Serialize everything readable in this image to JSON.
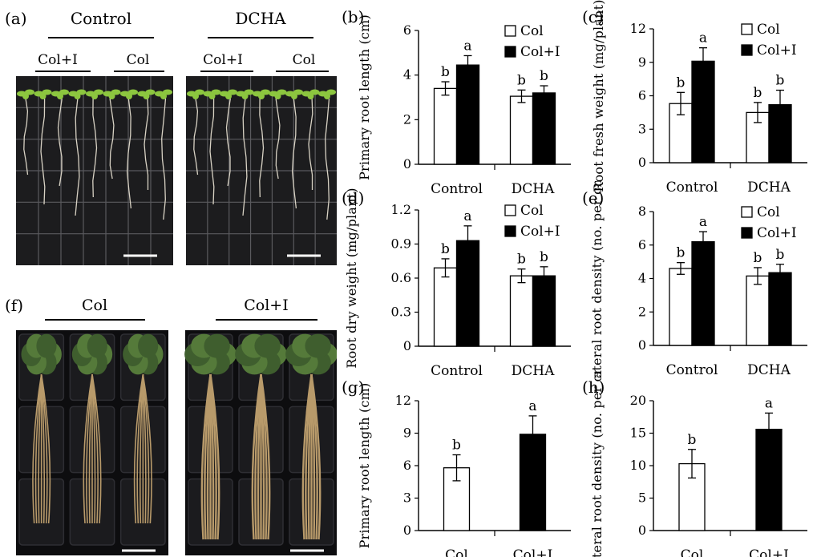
{
  "figure": {
    "panel_a": {
      "label": "(a)",
      "groups": [
        {
          "title": "Control",
          "subgroups": [
            "Col+I",
            "Col"
          ]
        },
        {
          "title": "DCHA",
          "subgroups": [
            "Col+I",
            "Col"
          ]
        }
      ]
    },
    "panel_f": {
      "label": "(f)",
      "groups": [
        {
          "title": "Col"
        },
        {
          "title": "Col+I"
        }
      ]
    }
  },
  "colors": {
    "col_fill": "#ffffff",
    "coli_fill": "#000000",
    "plate_bg": "#1c1c1e",
    "grid_line": "#5a5a5e",
    "leaf": "#8cc63f",
    "root": "#d8d2c4",
    "adult_leaf": "#3f5e2e",
    "adult_root": "#b89a6a",
    "tray": "#0d0d0f"
  },
  "chart_data": [
    {
      "id": "b",
      "label": "(b)",
      "type": "bar",
      "ylabel": "Primary root length (cm)",
      "categories": [
        "Control",
        "DCHA"
      ],
      "ylim": [
        0,
        6
      ],
      "yticks": [
        0,
        2,
        4,
        6
      ],
      "legend": [
        "Col",
        "Col+I"
      ],
      "legend_position": "top-right",
      "series": [
        {
          "name": "Col",
          "values": [
            3.4,
            3.05
          ],
          "errors": [
            0.3,
            0.28
          ],
          "letters": [
            "b",
            "b"
          ]
        },
        {
          "name": "Col+I",
          "values": [
            4.45,
            3.2
          ],
          "errors": [
            0.42,
            0.32
          ],
          "letters": [
            "a",
            "b"
          ]
        }
      ]
    },
    {
      "id": "c",
      "label": "(c)",
      "type": "bar",
      "ylabel": "Root fresh weight (mg/plant)",
      "categories": [
        "Control",
        "DCHA"
      ],
      "ylim": [
        0,
        12
      ],
      "yticks": [
        0,
        3,
        6,
        9,
        12
      ],
      "legend": [
        "Col",
        "Col+I"
      ],
      "legend_position": "top-right",
      "series": [
        {
          "name": "Col",
          "values": [
            5.3,
            4.5
          ],
          "errors": [
            1.0,
            0.9
          ],
          "letters": [
            "b",
            "b"
          ]
        },
        {
          "name": "Col+I",
          "values": [
            9.1,
            5.2
          ],
          "errors": [
            1.2,
            1.3
          ],
          "letters": [
            "a",
            "b"
          ]
        }
      ]
    },
    {
      "id": "d",
      "label": "(d)",
      "type": "bar",
      "ylabel": "Root dry weight (mg/plant)",
      "categories": [
        "Control",
        "DCHA"
      ],
      "ylim": [
        0,
        1.2
      ],
      "yticks": [
        "0",
        "0.3",
        "0.6",
        "0.9",
        "1.2"
      ],
      "legend": [
        "Col",
        "Col+I"
      ],
      "legend_position": "top-right",
      "series": [
        {
          "name": "Col",
          "values": [
            0.69,
            0.62
          ],
          "errors": [
            0.08,
            0.06
          ],
          "letters": [
            "b",
            "b"
          ]
        },
        {
          "name": "Col+I",
          "values": [
            0.93,
            0.62
          ],
          "errors": [
            0.13,
            0.08
          ],
          "letters": [
            "a",
            "b"
          ]
        }
      ]
    },
    {
      "id": "e",
      "label": "(e)",
      "type": "bar",
      "ylabel": "Lateral root density (no. per cm)",
      "categories": [
        "Control",
        "DCHA"
      ],
      "ylim": [
        0,
        8
      ],
      "yticks": [
        0,
        2,
        4,
        6,
        8
      ],
      "legend": [
        "Col",
        "Col+I"
      ],
      "legend_position": "top-right",
      "series": [
        {
          "name": "Col",
          "values": [
            4.6,
            4.15
          ],
          "errors": [
            0.35,
            0.5
          ],
          "letters": [
            "b",
            "b"
          ]
        },
        {
          "name": "Col+I",
          "values": [
            6.2,
            4.35
          ],
          "errors": [
            0.6,
            0.5
          ],
          "letters": [
            "a",
            "b"
          ]
        }
      ]
    },
    {
      "id": "g",
      "label": "(g)",
      "type": "bar",
      "ylabel": "Primary root length (cm)",
      "categories": [
        "Col",
        "Col+I"
      ],
      "ylim": [
        0,
        12
      ],
      "yticks": [
        0,
        3,
        6,
        9,
        12
      ],
      "series": [
        {
          "name": "value",
          "values": [
            5.8,
            8.9
          ],
          "errors": [
            1.2,
            1.7
          ],
          "letters": [
            "b",
            "a"
          ]
        }
      ]
    },
    {
      "id": "h",
      "label": "(h)",
      "type": "bar",
      "ylabel": "Lateral root density (no. per cm)",
      "categories": [
        "Col",
        "Col+I"
      ],
      "ylim": [
        0,
        20
      ],
      "yticks": [
        0,
        5,
        10,
        15,
        20
      ],
      "series": [
        {
          "name": "value",
          "values": [
            10.3,
            15.6
          ],
          "errors": [
            2.2,
            2.5
          ],
          "letters": [
            "b",
            "a"
          ]
        }
      ]
    }
  ]
}
